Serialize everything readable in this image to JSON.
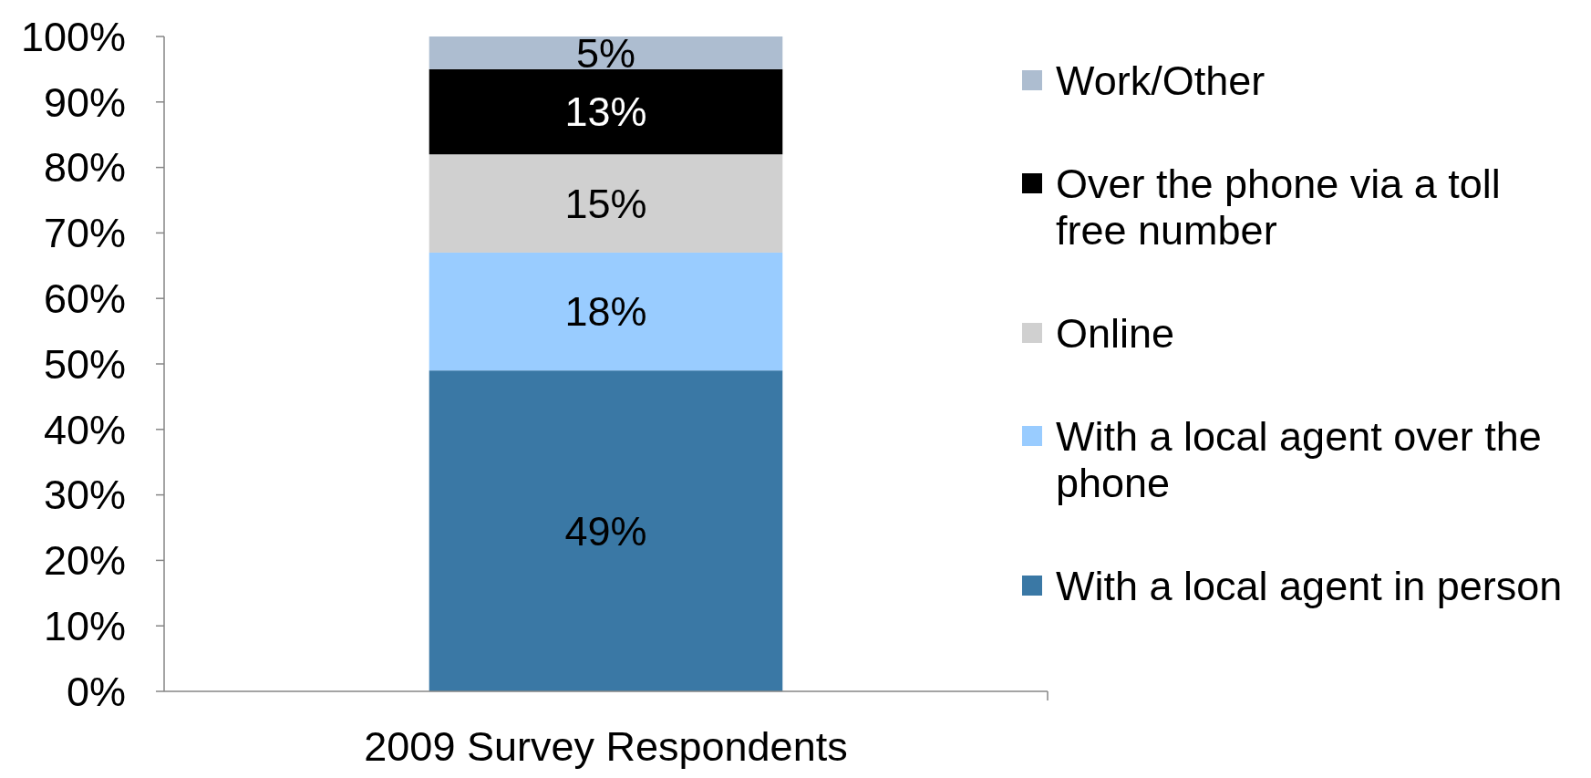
{
  "chart_data": {
    "type": "bar",
    "stacked": true,
    "categories": [
      "2009 Survey Respondents"
    ],
    "series": [
      {
        "name": "With a local agent in person",
        "color": "#3a78a5",
        "values": [
          49
        ],
        "value_labels": [
          "49%"
        ]
      },
      {
        "name": "With a local agent over the phone",
        "color": "#99ccff",
        "values": [
          18
        ],
        "value_labels": [
          "18%"
        ]
      },
      {
        "name": "Online",
        "color": "#d0d0d0",
        "values": [
          15
        ],
        "value_labels": [
          "15%"
        ]
      },
      {
        "name": "Over the phone via a toll free number",
        "color": "#000000",
        "values": [
          13
        ],
        "value_labels": [
          "13%"
        ]
      },
      {
        "name": "Work/Other",
        "color": "#adbdd0",
        "values": [
          5
        ],
        "value_labels": [
          "5%"
        ]
      }
    ],
    "ylim": [
      0,
      100
    ],
    "yticks": [
      {
        "value": 0,
        "label": "0%"
      },
      {
        "value": 10,
        "label": "10%"
      },
      {
        "value": 20,
        "label": "20%"
      },
      {
        "value": 30,
        "label": "30%"
      },
      {
        "value": 40,
        "label": "40%"
      },
      {
        "value": 50,
        "label": "50%"
      },
      {
        "value": 60,
        "label": "60%"
      },
      {
        "value": 70,
        "label": "70%"
      },
      {
        "value": 80,
        "label": "80%"
      },
      {
        "value": 90,
        "label": "90%"
      },
      {
        "value": 100,
        "label": "100%"
      }
    ],
    "legend": "right",
    "grid": false
  }
}
